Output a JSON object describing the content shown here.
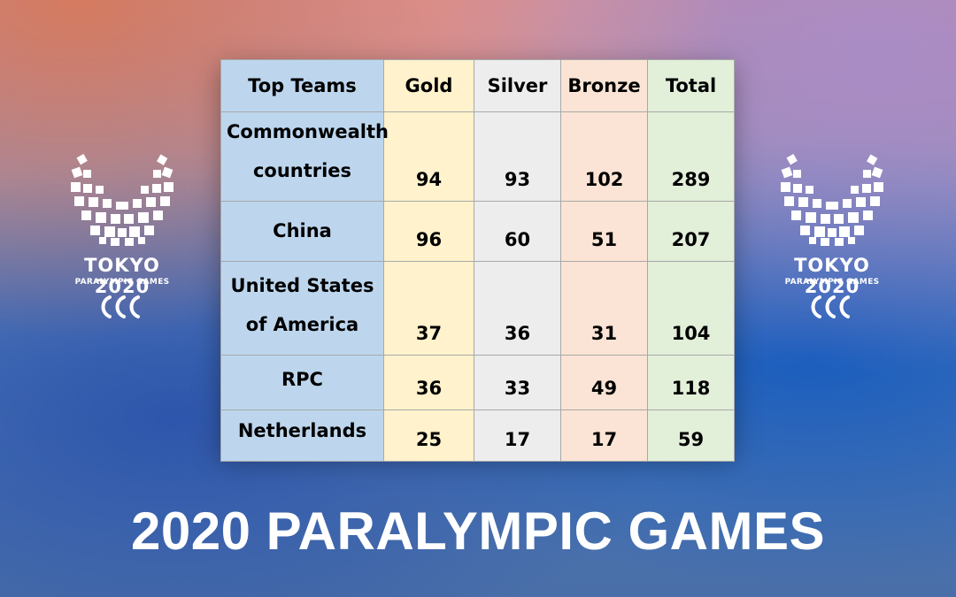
{
  "logo": {
    "brand": "TOKYO 2020",
    "subtitle": "PARALYMPIC GAMES"
  },
  "table": {
    "headers": [
      "Top Teams",
      "Gold",
      "Silver",
      "Bronze",
      "Total"
    ],
    "rows": [
      {
        "team": "Commonwealth countries",
        "gold": "94",
        "silver": "93",
        "bronze": "102",
        "total": "289"
      },
      {
        "team": "China",
        "gold": "96",
        "silver": "60",
        "bronze": "51",
        "total": "207"
      },
      {
        "team": "United States of America",
        "gold": "37",
        "silver": "36",
        "bronze": "31",
        "total": "104"
      },
      {
        "team": "RPC",
        "gold": "36",
        "silver": "33",
        "bronze": "49",
        "total": "118"
      },
      {
        "team": "Netherlands",
        "gold": "25",
        "silver": "17",
        "bronze": "17",
        "total": "59"
      }
    ]
  },
  "title": "2020 PARALYMPIC GAMES"
}
